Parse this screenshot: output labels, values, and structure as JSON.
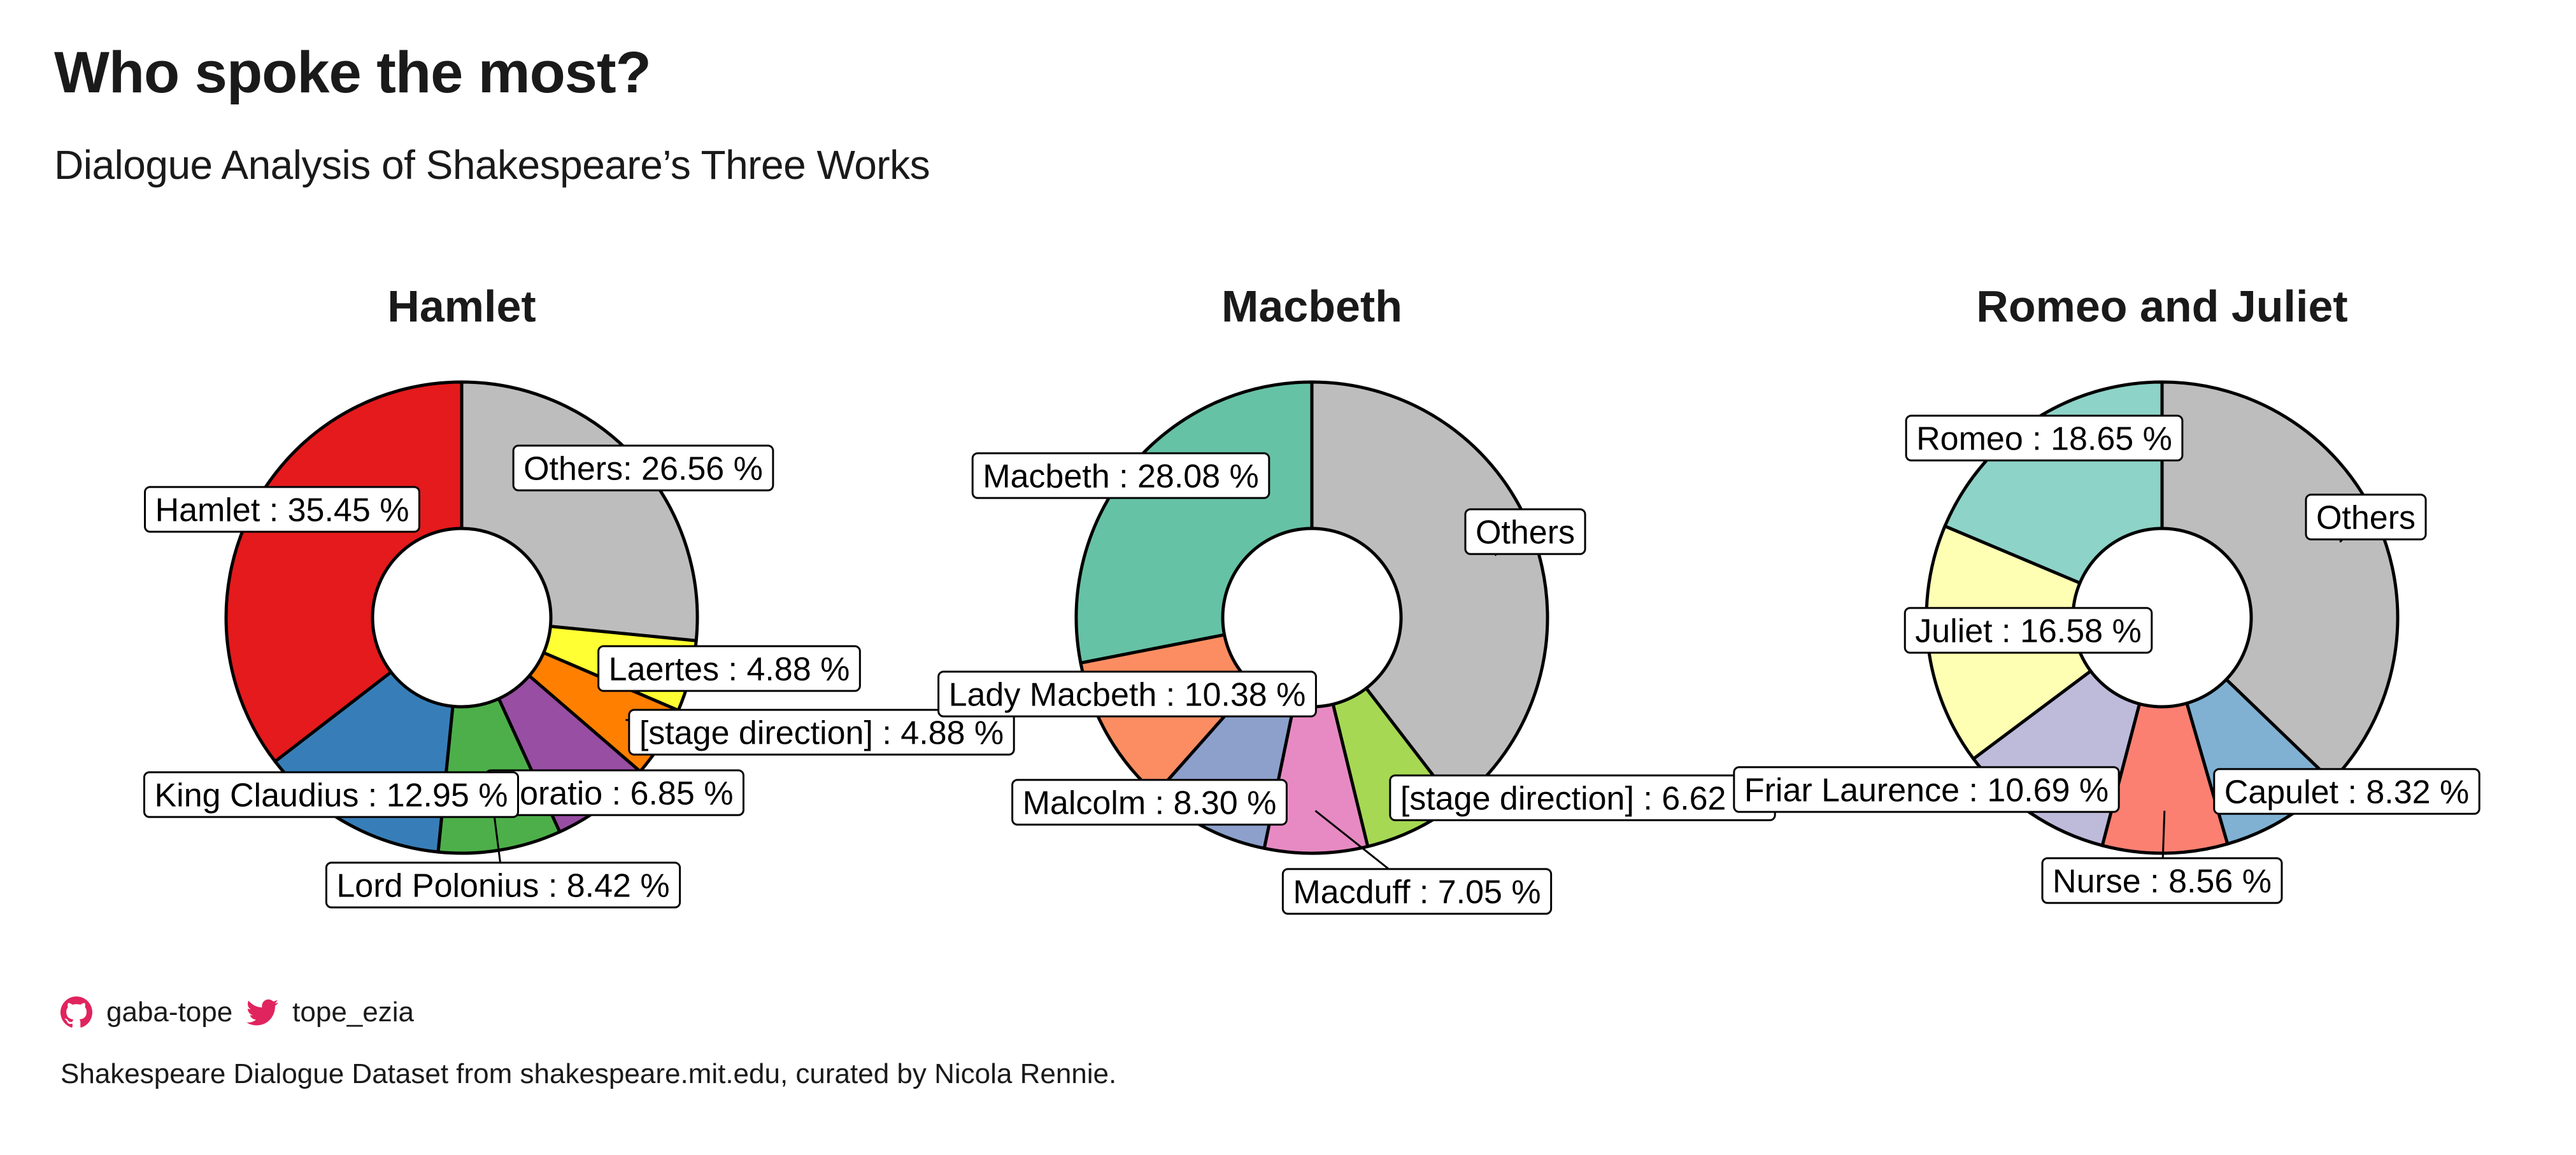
{
  "title": "Who spoke the most?",
  "subtitle": "Dialogue Analysis of Shakespeare’s Three Works",
  "footer": {
    "github_handle": "gaba-tope",
    "twitter_handle": "tope_ezia",
    "icon_color": "#e0245e",
    "source": "Shakespeare Dialogue Dataset from shakespeare.mit.edu, curated by Nicola Rennie."
  },
  "chart_data": [
    {
      "type": "pie",
      "donut": true,
      "title": "Hamlet",
      "slices": [
        {
          "name": "Others",
          "value": 26.56,
          "label": "Others: 26.56 %",
          "color": "#bdbdbd"
        },
        {
          "name": "Laertes",
          "value": 4.88,
          "label": "Laertes : 4.88 %",
          "color": "#ffff33"
        },
        {
          "name": "[stage direction]",
          "value": 4.88,
          "label": "[stage direction] : 4.88 %",
          "color": "#ff7f00"
        },
        {
          "name": "Horatio",
          "value": 6.85,
          "label": "Horatio : 6.85 %",
          "color": "#984ea3"
        },
        {
          "name": "Lord Polonius",
          "value": 8.42,
          "label": "Lord Polonius : 8.42 %",
          "color": "#4daf4a"
        },
        {
          "name": "King Claudius",
          "value": 12.95,
          "label": "King Claudius : 12.95 %",
          "color": "#377eb8"
        },
        {
          "name": "Hamlet",
          "value": 35.45,
          "label": "Hamlet : 35.45 %",
          "color": "#e41a1c"
        }
      ]
    },
    {
      "type": "pie",
      "donut": true,
      "title": "Macbeth",
      "slices": [
        {
          "name": "Others",
          "value": 39.57,
          "label": "Others",
          "color": "#bdbdbd"
        },
        {
          "name": "[stage direction]",
          "value": 6.62,
          "label": "[stage direction] : 6.62 %",
          "color": "#a6d854"
        },
        {
          "name": "Macduff",
          "value": 7.05,
          "label": "Macduff : 7.05 %",
          "color": "#e78ac3"
        },
        {
          "name": "Malcolm",
          "value": 8.3,
          "label": "Malcolm : 8.30 %",
          "color": "#8da0cb"
        },
        {
          "name": "Lady Macbeth",
          "value": 10.38,
          "label": "Lady Macbeth : 10.38 %",
          "color": "#fc8d62"
        },
        {
          "name": "Macbeth",
          "value": 28.08,
          "label": "Macbeth : 28.08 %",
          "color": "#66c2a5"
        }
      ]
    },
    {
      "type": "pie",
      "donut": true,
      "title": "Romeo and Juliet",
      "slices": [
        {
          "name": "Others",
          "value": 37.2,
          "label": "Others",
          "color": "#bdbdbd"
        },
        {
          "name": "Capulet",
          "value": 8.32,
          "label": "Capulet : 8.32 %",
          "color": "#80b1d3"
        },
        {
          "name": "Nurse",
          "value": 8.56,
          "label": "Nurse : 8.56 %",
          "color": "#fb8072"
        },
        {
          "name": "Friar Laurence",
          "value": 10.69,
          "label": "Friar Laurence : 10.69 %",
          "color": "#bebada"
        },
        {
          "name": "Juliet",
          "value": 16.58,
          "label": "Juliet : 16.58 %",
          "color": "#ffffb3"
        },
        {
          "name": "Romeo",
          "value": 18.65,
          "label": "Romeo : 18.65 %",
          "color": "#8dd3c7"
        }
      ]
    }
  ]
}
